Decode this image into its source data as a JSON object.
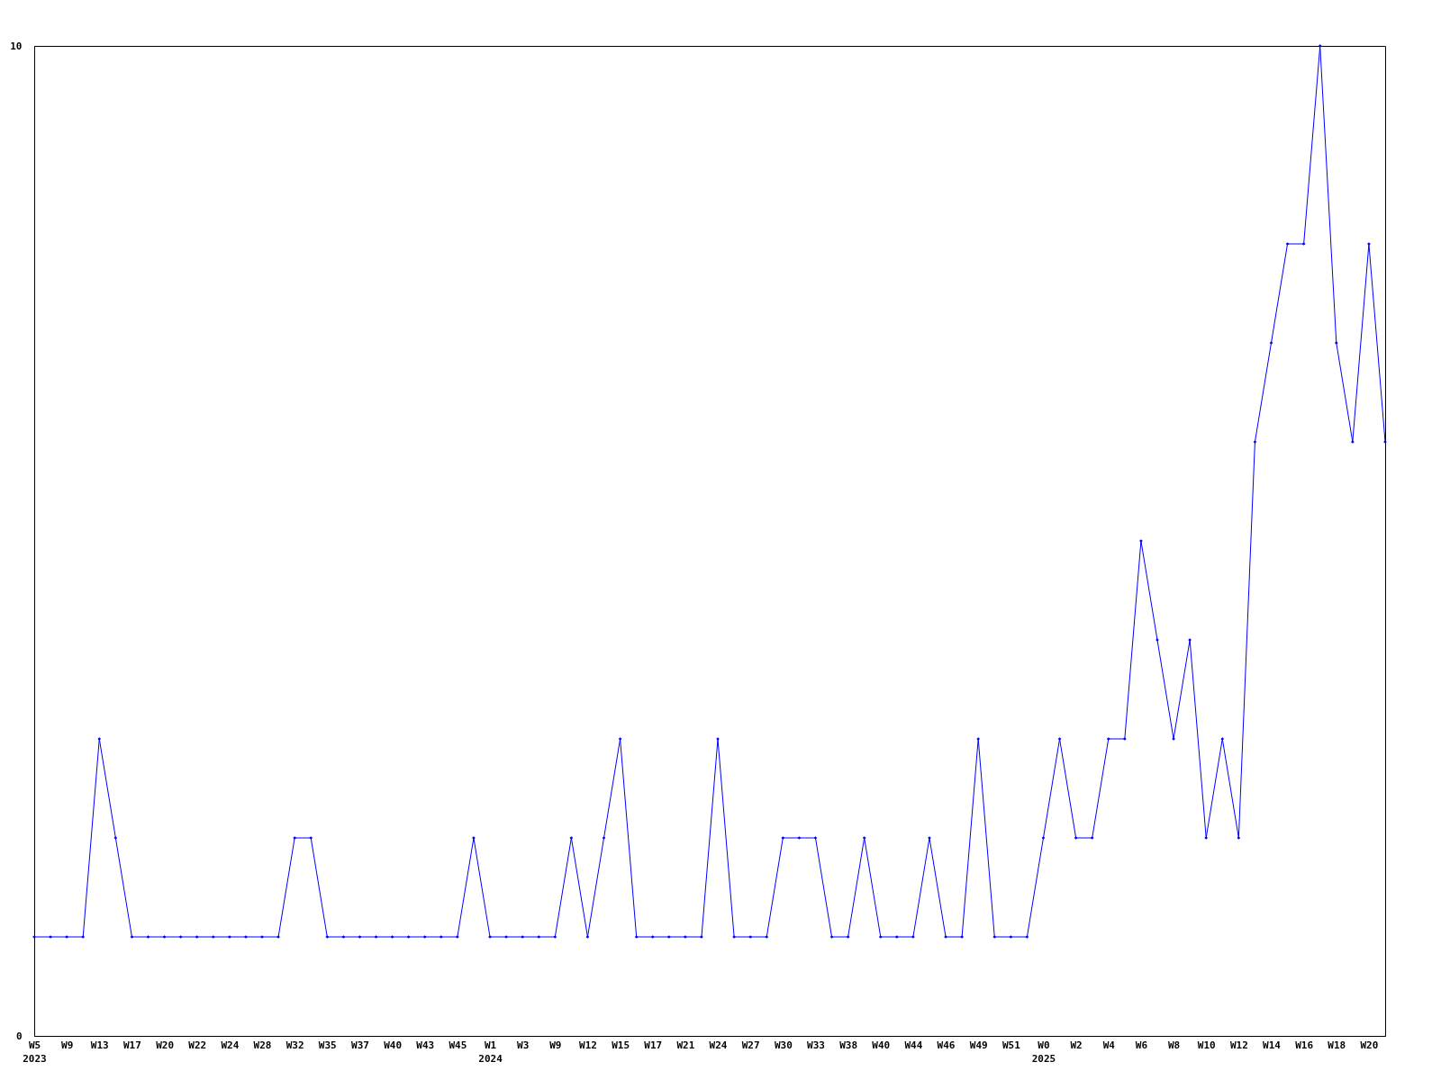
{
  "chart_data": {
    "type": "line",
    "categories": [
      "W5\n2023",
      null,
      "W9",
      null,
      "W13",
      null,
      "W17",
      null,
      "W20",
      null,
      "W22",
      null,
      "W24",
      null,
      "W28",
      null,
      "W32",
      null,
      "W35",
      null,
      "W37",
      null,
      "W40",
      null,
      "W43",
      null,
      "W45",
      null,
      "W1\n2024",
      null,
      "W3",
      null,
      "W9",
      null,
      "W12",
      null,
      "W15",
      null,
      "W17",
      null,
      "W21",
      null,
      "W24",
      null,
      "W27",
      null,
      "W30",
      null,
      "W33",
      null,
      "W38",
      null,
      "W40",
      null,
      "W44",
      null,
      "W46",
      null,
      "W49",
      null,
      "W51",
      null,
      "W0\n2025",
      null,
      "W2",
      null,
      "W4",
      null,
      "W6",
      null,
      "W8",
      null,
      "W10",
      null,
      "W12",
      null,
      "W14",
      null,
      "W16",
      null,
      "W18",
      null,
      "W20",
      null
    ],
    "series": [
      {
        "color": "#0000ff",
        "values": [
          1,
          1,
          1,
          1,
          3,
          2,
          1,
          1,
          1,
          1,
          1,
          1,
          1,
          1,
          1,
          1,
          2,
          2,
          1,
          1,
          1,
          1,
          1,
          1,
          1,
          1,
          1,
          2,
          1,
          1,
          1,
          1,
          1,
          2,
          1,
          2,
          3,
          1,
          1,
          1,
          1,
          1,
          3,
          1,
          1,
          1,
          2,
          2,
          2,
          1,
          1,
          2,
          1,
          1,
          1,
          2,
          1,
          1,
          3,
          1,
          1,
          1,
          2,
          3,
          2,
          2,
          3,
          3,
          5,
          4,
          3,
          4,
          2,
          3,
          2,
          6,
          7,
          8,
          8,
          10,
          7,
          6,
          8,
          6
        ]
      }
    ],
    "ylim": [
      0,
      10
    ],
    "yticks": [
      0,
      10
    ],
    "marker": "diamond",
    "line_style": "solid"
  }
}
